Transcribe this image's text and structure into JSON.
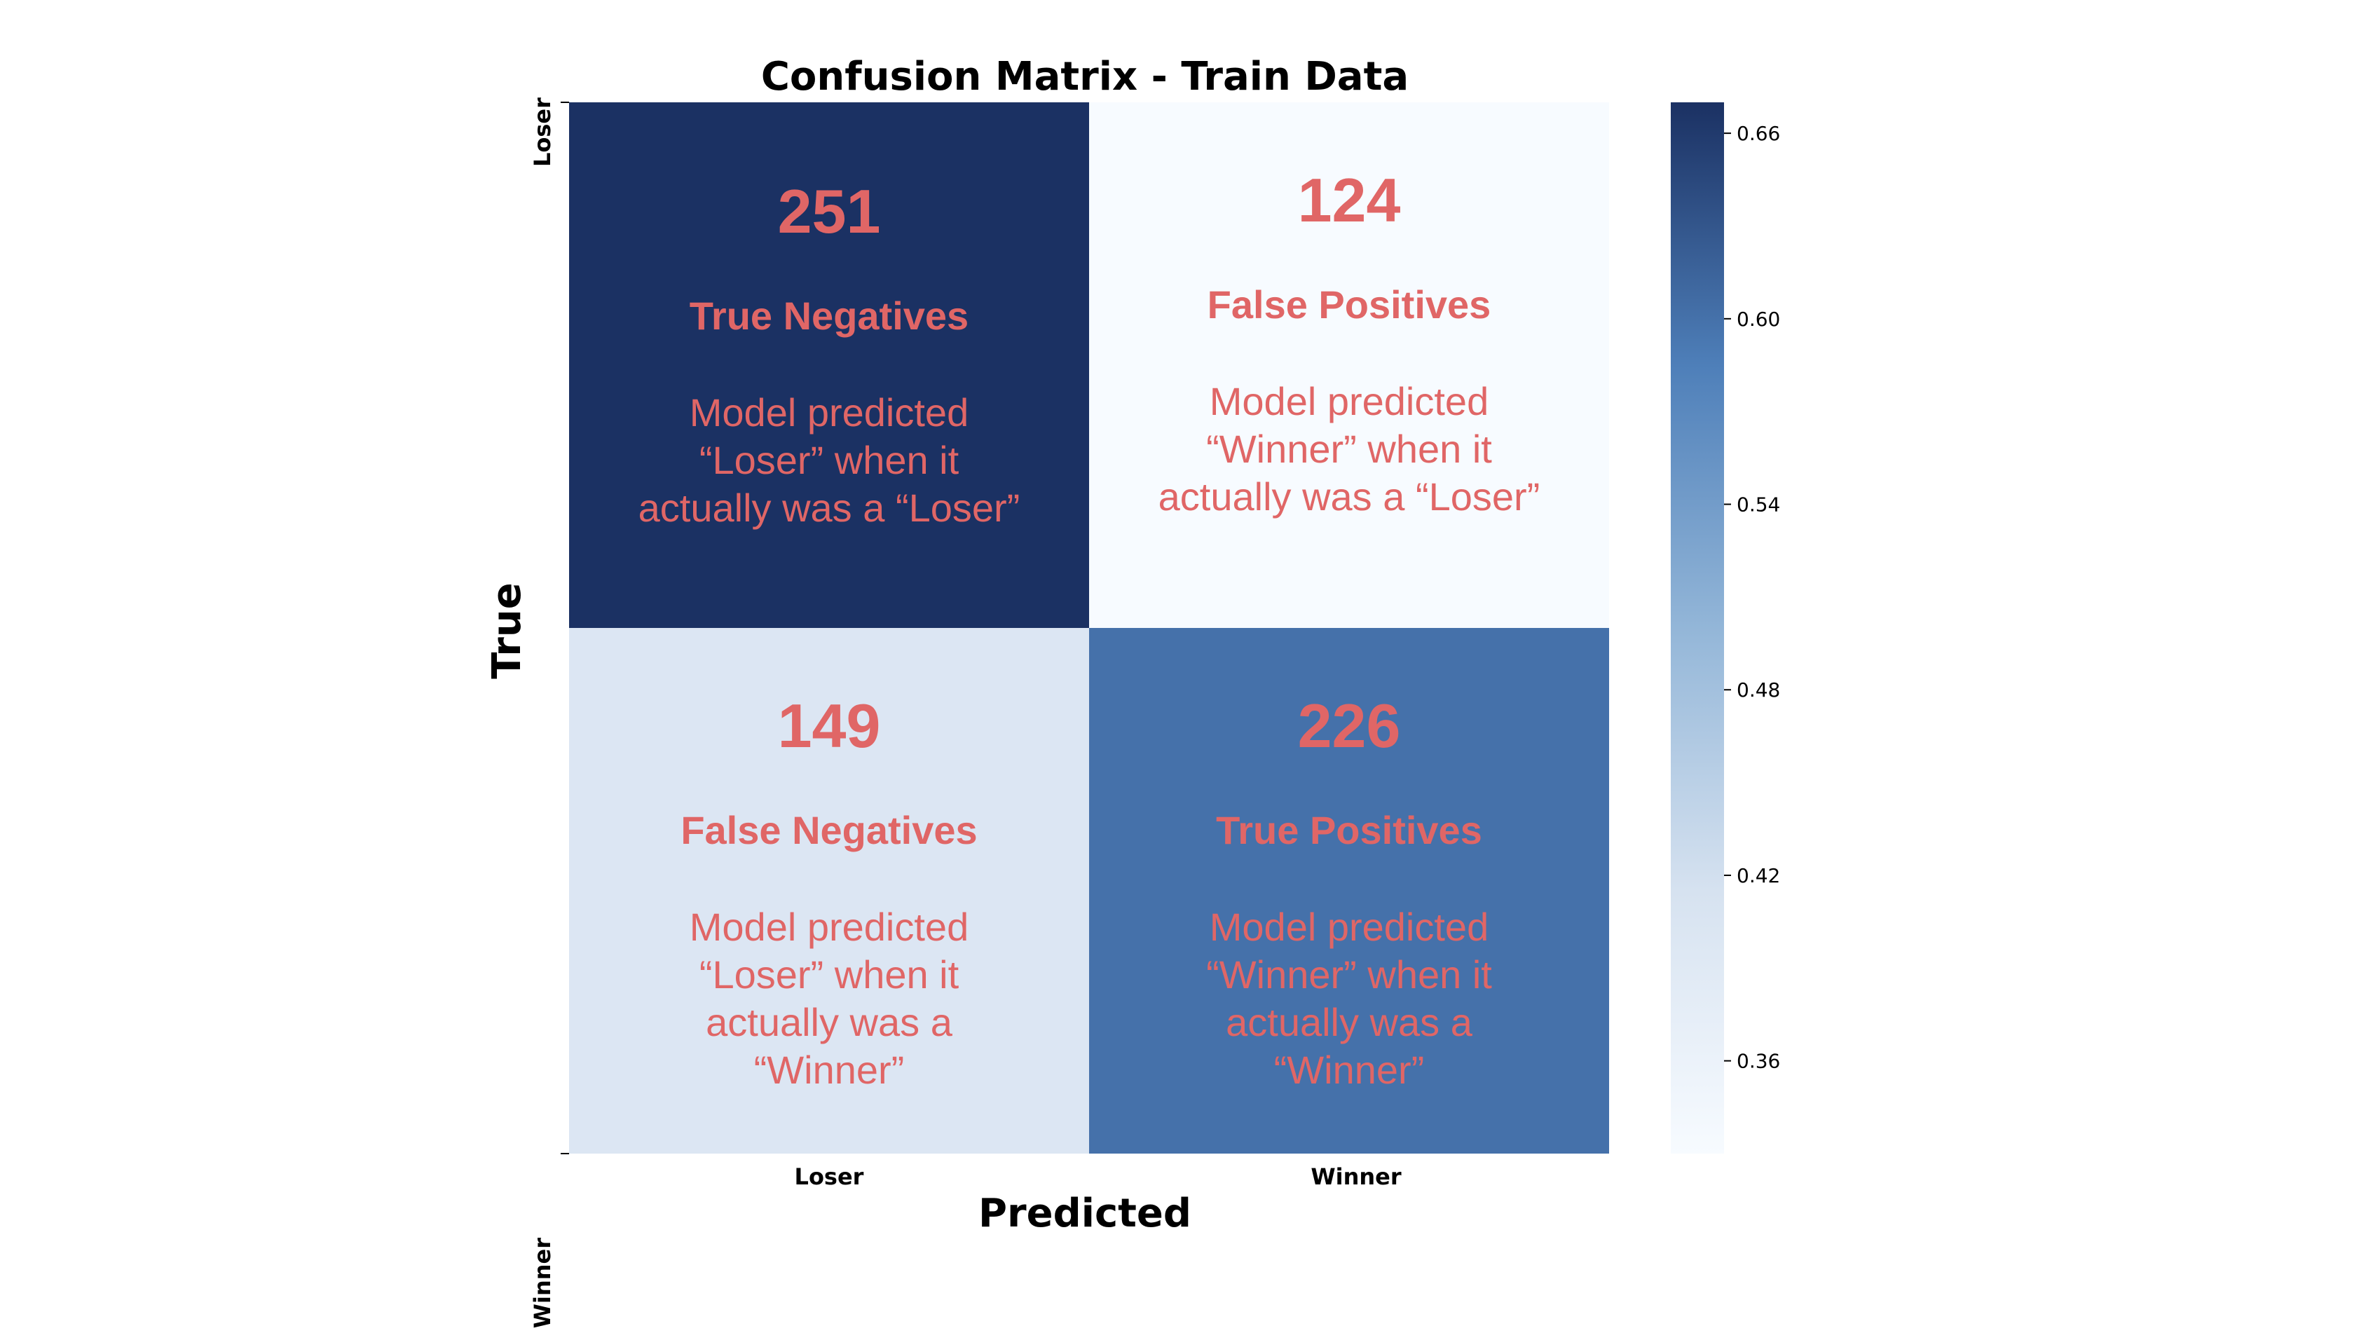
{
  "chart_data": {
    "type": "heatmap",
    "title": "Confusion Matrix - Train Data",
    "xlabel": "Predicted",
    "ylabel": "True",
    "x_categories": [
      "Loser",
      "Winner"
    ],
    "y_categories": [
      "Loser",
      "Winner"
    ],
    "values": [
      [
        251,
        124
      ],
      [
        149,
        226
      ]
    ],
    "normalized": [
      [
        0.67,
        0.33
      ],
      [
        0.4,
        0.6
      ]
    ],
    "cells": [
      [
        {
          "count": "251",
          "name": "True Negatives",
          "description": [
            "Model predicted",
            "“Loser” when it",
            "actually was a “Loser”"
          ]
        },
        {
          "count": "124",
          "name": "False Positives",
          "description": [
            "Model predicted",
            "“Winner” when it",
            "actually was a “Loser”"
          ]
        }
      ],
      [
        {
          "count": "149",
          "name": "False Negatives",
          "description": [
            "Model predicted",
            "“Loser” when it",
            "actually was a",
            "“Winner”"
          ]
        },
        {
          "count": "226",
          "name": "True Positives",
          "description": [
            "Model predicted",
            "“Winner” when it",
            "actually was a",
            "“Winner”"
          ]
        }
      ]
    ],
    "colorbar": {
      "range": [
        0.33,
        0.67
      ],
      "ticks": [
        0.36,
        0.42,
        0.48,
        0.54,
        0.6,
        0.66
      ],
      "tick_labels": [
        "0.36",
        "0.42",
        "0.48",
        "0.54",
        "0.60",
        "0.66"
      ],
      "colormap": "Blues",
      "low_color": "#f7fbff",
      "high_color": "#1b3163"
    },
    "annotation_color": "#e06666",
    "grid": false,
    "legend": "colorbar-right"
  }
}
